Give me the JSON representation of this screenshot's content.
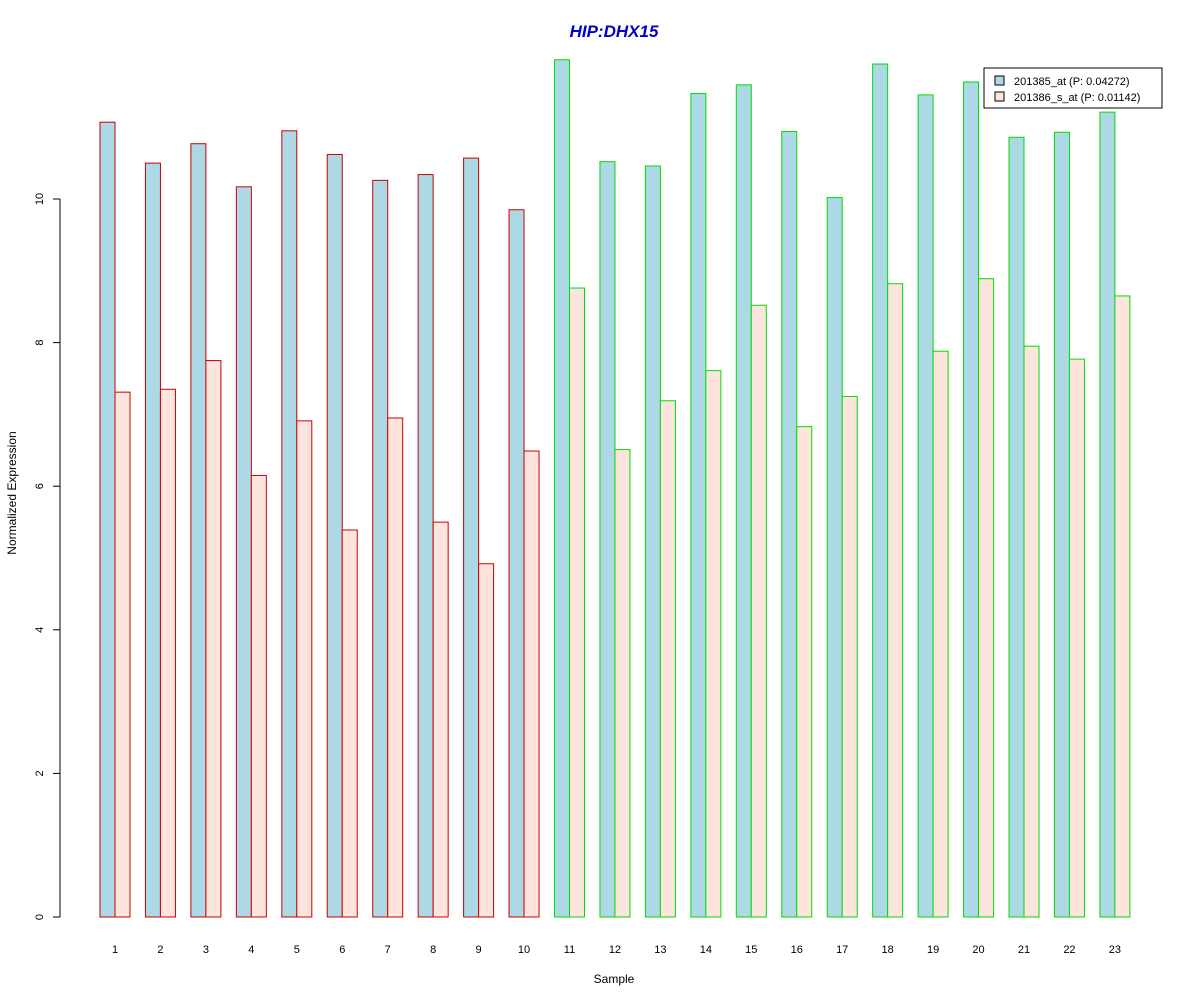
{
  "chart_data": {
    "type": "bar",
    "title": "HIP:DHX15",
    "xlabel": "Sample",
    "ylabel": "Normalized Expression",
    "ylim": [
      0,
      12
    ],
    "y_ticks": [
      0,
      2,
      4,
      6,
      8,
      10
    ],
    "categories": [
      "1",
      "2",
      "3",
      "4",
      "5",
      "6",
      "7",
      "8",
      "9",
      "10",
      "11",
      "12",
      "13",
      "14",
      "15",
      "16",
      "17",
      "18",
      "19",
      "20",
      "21",
      "22",
      "23"
    ],
    "series": [
      {
        "name": "201385_at (P: 0.04272)",
        "fill": "#add8e6",
        "values": [
          11.07,
          10.5,
          10.77,
          10.17,
          10.95,
          10.62,
          10.26,
          10.34,
          10.57,
          9.85,
          11.94,
          10.52,
          10.46,
          11.47,
          11.59,
          10.94,
          10.02,
          11.88,
          11.45,
          11.63,
          10.86,
          10.93,
          11.21
        ]
      },
      {
        "name": "201386_s_at (P: 0.01142)",
        "fill": "#fde4dc",
        "values": [
          7.31,
          7.35,
          7.75,
          6.15,
          6.91,
          5.39,
          6.95,
          5.5,
          4.92,
          6.49,
          8.76,
          6.51,
          7.19,
          7.61,
          8.52,
          6.83,
          7.25,
          8.82,
          7.88,
          8.89,
          7.95,
          7.77,
          8.65
        ]
      }
    ],
    "group_colors": [
      "#cc0000",
      "#00dd00"
    ],
    "groups": [
      {
        "from": 1,
        "to": 10,
        "border_color": "#cc0000"
      },
      {
        "from": 11,
        "to": 23,
        "border_color": "#00dd00"
      }
    ],
    "title_color": "#0000cc",
    "legend_position": "top-right",
    "grid": false
  }
}
